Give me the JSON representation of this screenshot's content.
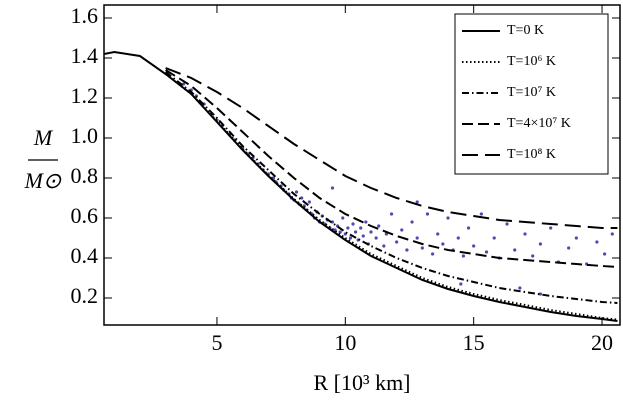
{
  "chart_data": {
    "type": "line",
    "xlabel": "R [10³ km]",
    "ylabel_numerator": "M",
    "ylabel_denominator": "M⊙",
    "xlim": [
      0.6,
      20.7
    ],
    "ylim": [
      0.065,
      1.665
    ],
    "xticks": [
      5,
      10,
      15,
      20
    ],
    "yticks": [
      0.2,
      0.4,
      0.6,
      0.8,
      {
        "value": 1,
        "label": "1.0"
      },
      1.2,
      1.4,
      1.6
    ],
    "legend": "upper right",
    "series": [
      {
        "name": "T=0 K",
        "color": "#000000",
        "style": "solid",
        "x": [
          0.6,
          1,
          2,
          3,
          4,
          5,
          6,
          7,
          8,
          9,
          10,
          11,
          12,
          13,
          14,
          15,
          16,
          17,
          18,
          19,
          20,
          20.6
        ],
        "values": [
          1.42,
          1.43,
          1.41,
          1.32,
          1.22,
          1.08,
          0.94,
          0.81,
          0.69,
          0.58,
          0.49,
          0.41,
          0.35,
          0.29,
          0.245,
          0.21,
          0.18,
          0.155,
          0.13,
          0.11,
          0.095,
          0.085
        ]
      },
      {
        "name": "T=10⁶ K",
        "color": "#000000",
        "style": "dotted",
        "x": [
          3,
          4,
          5,
          6,
          7,
          8,
          9,
          10,
          11,
          12,
          13,
          14,
          15,
          16,
          17,
          18,
          19,
          20,
          20.6
        ],
        "values": [
          1.32,
          1.22,
          1.085,
          0.945,
          0.815,
          0.695,
          0.59,
          0.5,
          0.42,
          0.36,
          0.3,
          0.255,
          0.22,
          0.19,
          0.165,
          0.14,
          0.12,
          0.1,
          0.092
        ]
      },
      {
        "name": "T=10⁷ K",
        "color": "#000000",
        "style": "dashdot",
        "x": [
          3,
          4,
          5,
          6,
          7,
          8,
          9,
          10,
          11,
          12,
          13,
          14,
          15,
          16,
          17,
          18,
          19,
          20,
          20.6
        ],
        "values": [
          1.33,
          1.23,
          1.1,
          0.96,
          0.84,
          0.72,
          0.62,
          0.53,
          0.46,
          0.4,
          0.35,
          0.31,
          0.28,
          0.25,
          0.23,
          0.21,
          0.195,
          0.18,
          0.175
        ]
      },
      {
        "name": "T=4×10⁷ K",
        "color": "#000000",
        "style": "dashed",
        "x": [
          3,
          4,
          5,
          6,
          7,
          8,
          9,
          10,
          11,
          12,
          13,
          14,
          15,
          16,
          17,
          18,
          19,
          20,
          20.6
        ],
        "values": [
          1.34,
          1.26,
          1.15,
          1.03,
          0.91,
          0.8,
          0.7,
          0.62,
          0.56,
          0.51,
          0.47,
          0.44,
          0.42,
          0.4,
          0.39,
          0.38,
          0.37,
          0.36,
          0.355
        ]
      },
      {
        "name": "T=10⁸ K",
        "color": "#000000",
        "style": "longdashed",
        "x": [
          3,
          4,
          5,
          6,
          7,
          8,
          9,
          10,
          11,
          12,
          13,
          14,
          15,
          16,
          17,
          18,
          19,
          20,
          20.6
        ],
        "values": [
          1.35,
          1.3,
          1.23,
          1.15,
          1.06,
          0.97,
          0.89,
          0.81,
          0.75,
          0.7,
          0.66,
          0.63,
          0.61,
          0.59,
          0.58,
          0.57,
          0.56,
          0.55,
          0.55
        ]
      }
    ],
    "points": {
      "color": "#4b4bb0",
      "x": [
        3.7,
        4.0,
        4.2,
        4.5,
        4.8,
        5.0,
        5.2,
        5.5,
        5.7,
        6.0,
        6.2,
        6.4,
        6.6,
        6.8,
        7.0,
        7.2,
        7.3,
        7.5,
        7.6,
        7.8,
        7.9,
        8.0,
        8.1,
        8.2,
        8.3,
        8.4,
        8.5,
        8.6,
        8.7,
        8.8,
        8.9,
        9.0,
        9.1,
        9.2,
        9.3,
        9.4,
        9.5,
        9.6,
        9.7,
        9.8,
        9.9,
        10.0,
        10.1,
        10.2,
        10.3,
        10.4,
        10.5,
        10.6,
        10.7,
        10.8,
        10.9,
        11.0,
        11.2,
        11.3,
        11.5,
        11.6,
        11.8,
        12.0,
        12.2,
        12.4,
        12.6,
        12.8,
        13.0,
        13.2,
        13.4,
        13.6,
        13.8,
        14.0,
        14.2,
        14.4,
        14.6,
        14.8,
        15.0,
        15.3,
        15.5,
        15.8,
        16.0,
        16.3,
        16.6,
        17.0,
        17.3,
        17.6,
        18.0,
        18.3,
        18.7,
        19.0,
        19.4,
        19.8,
        20.1,
        20.4,
        14.5,
        16.8,
        9.5,
        12.8,
        17.6
      ],
      "values": [
        1.27,
        1.24,
        1.21,
        1.17,
        1.12,
        1.09,
        1.06,
        1.02,
        0.99,
        0.95,
        0.92,
        0.9,
        0.87,
        0.84,
        0.82,
        0.8,
        0.78,
        0.76,
        0.74,
        0.72,
        0.7,
        0.69,
        0.73,
        0.67,
        0.7,
        0.66,
        0.64,
        0.68,
        0.62,
        0.6,
        0.63,
        0.58,
        0.61,
        0.57,
        0.59,
        0.55,
        0.58,
        0.54,
        0.56,
        0.53,
        0.6,
        0.52,
        0.55,
        0.5,
        0.57,
        0.53,
        0.49,
        0.55,
        0.51,
        0.58,
        0.47,
        0.53,
        0.5,
        0.56,
        0.46,
        0.52,
        0.62,
        0.48,
        0.54,
        0.44,
        0.58,
        0.5,
        0.45,
        0.62,
        0.42,
        0.52,
        0.47,
        0.6,
        0.44,
        0.5,
        0.41,
        0.55,
        0.46,
        0.62,
        0.43,
        0.5,
        0.4,
        0.57,
        0.44,
        0.52,
        0.41,
        0.47,
        0.55,
        0.38,
        0.45,
        0.5,
        0.37,
        0.48,
        0.42,
        0.52,
        0.27,
        0.25,
        0.75,
        0.68,
        0.22
      ]
    }
  }
}
